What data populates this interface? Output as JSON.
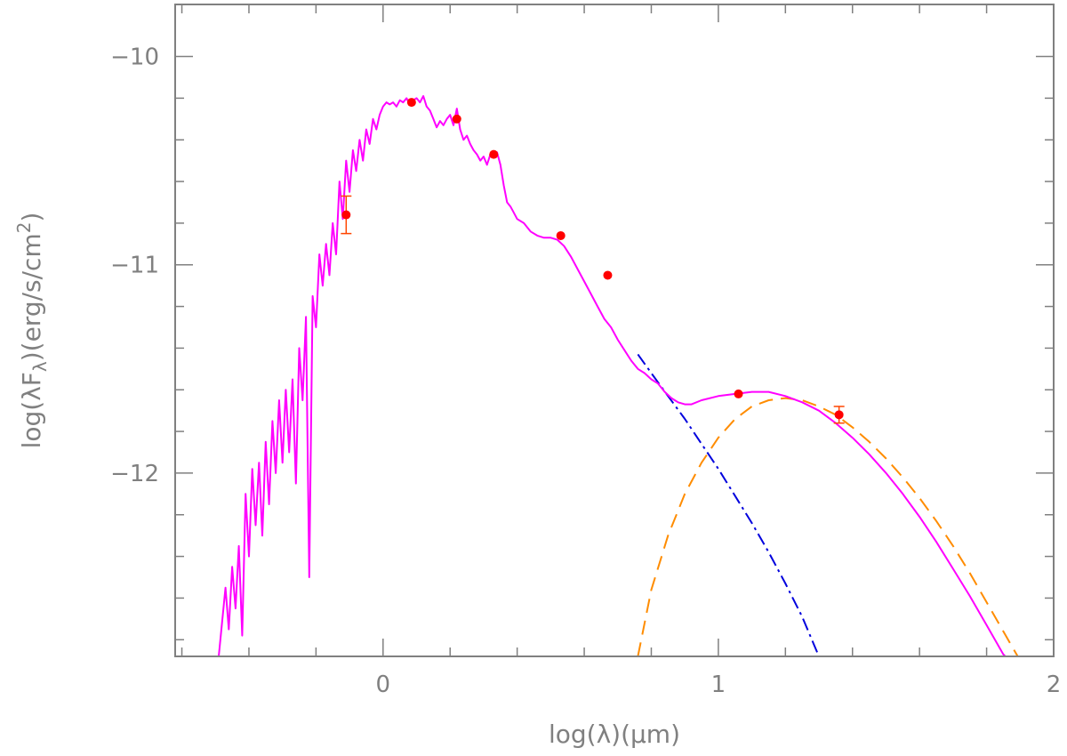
{
  "chart_data": {
    "type": "line",
    "xlabel": "log(λ)(μm)",
    "ylabel": "log(λF_λ)(erg/s/cm²)",
    "xlim": [
      -0.62,
      2.0
    ],
    "ylim": [
      -12.88,
      -9.75
    ],
    "x_ticks": [
      0,
      1,
      2
    ],
    "x_tick_labels": [
      "0",
      "1",
      "2"
    ],
    "y_ticks": [
      -10,
      -11,
      -12
    ],
    "y_tick_labels": [
      "−10",
      "−11",
      "−12"
    ],
    "grid": false,
    "legend": "none",
    "colors": {
      "total_model": "#ff00ff",
      "photosphere": "#0000dd",
      "dust": "#ff8c00",
      "observed": "#ff0000",
      "error_bar": "#ff4500",
      "axes": "#808080"
    },
    "series": [
      {
        "role": "total model (stellar spectrum + dust excess)",
        "style": "solid",
        "color": "#ff00ff",
        "x": [
          -0.49,
          -0.47,
          -0.46,
          -0.45,
          -0.44,
          -0.43,
          -0.42,
          -0.41,
          -0.4,
          -0.39,
          -0.38,
          -0.37,
          -0.36,
          -0.35,
          -0.34,
          -0.33,
          -0.32,
          -0.31,
          -0.3,
          -0.29,
          -0.28,
          -0.27,
          -0.26,
          -0.25,
          -0.24,
          -0.23,
          -0.22,
          -0.21,
          -0.2,
          -0.19,
          -0.18,
          -0.17,
          -0.16,
          -0.15,
          -0.14,
          -0.13,
          -0.12,
          -0.11,
          -0.1,
          -0.09,
          -0.08,
          -0.07,
          -0.06,
          -0.05,
          -0.04,
          -0.03,
          -0.02,
          -0.01,
          0.0,
          0.01,
          0.02,
          0.03,
          0.04,
          0.05,
          0.06,
          0.07,
          0.08,
          0.09,
          0.1,
          0.11,
          0.12,
          0.13,
          0.14,
          0.15,
          0.16,
          0.17,
          0.18,
          0.19,
          0.2,
          0.21,
          0.22,
          0.23,
          0.24,
          0.25,
          0.26,
          0.27,
          0.28,
          0.29,
          0.3,
          0.31,
          0.32,
          0.33,
          0.34,
          0.35,
          0.36,
          0.37,
          0.38,
          0.39,
          0.4,
          0.42,
          0.44,
          0.46,
          0.48,
          0.5,
          0.52,
          0.54,
          0.56,
          0.58,
          0.6,
          0.62,
          0.64,
          0.66,
          0.68,
          0.7,
          0.72,
          0.74,
          0.76,
          0.78,
          0.8,
          0.81,
          0.82,
          0.84,
          0.86,
          0.88,
          0.9,
          0.92,
          0.95,
          1.0,
          1.05,
          1.1,
          1.15,
          1.2,
          1.25,
          1.3,
          1.35,
          1.4,
          1.45,
          1.5,
          1.55,
          1.6,
          1.65,
          1.7,
          1.75,
          1.8,
          1.85,
          1.9
        ],
        "y": [
          -12.88,
          -12.55,
          -12.75,
          -12.45,
          -12.65,
          -12.35,
          -12.78,
          -12.1,
          -12.4,
          -11.98,
          -12.25,
          -11.95,
          -12.3,
          -11.85,
          -12.15,
          -11.75,
          -12.0,
          -11.65,
          -11.95,
          -11.6,
          -11.9,
          -11.55,
          -12.05,
          -11.4,
          -11.65,
          -11.25,
          -12.5,
          -11.15,
          -11.3,
          -10.95,
          -11.1,
          -10.9,
          -11.05,
          -10.8,
          -10.95,
          -10.6,
          -10.78,
          -10.5,
          -10.65,
          -10.45,
          -10.55,
          -10.4,
          -10.5,
          -10.35,
          -10.42,
          -10.3,
          -10.35,
          -10.28,
          -10.24,
          -10.22,
          -10.23,
          -10.22,
          -10.24,
          -10.21,
          -10.22,
          -10.2,
          -10.23,
          -10.21,
          -10.2,
          -10.22,
          -10.19,
          -10.24,
          -10.26,
          -10.3,
          -10.34,
          -10.31,
          -10.33,
          -10.3,
          -10.28,
          -10.33,
          -10.25,
          -10.35,
          -10.4,
          -10.38,
          -10.42,
          -10.45,
          -10.47,
          -10.5,
          -10.48,
          -10.52,
          -10.47,
          -10.48,
          -10.46,
          -10.52,
          -10.62,
          -10.7,
          -10.72,
          -10.75,
          -10.78,
          -10.8,
          -10.84,
          -10.86,
          -10.87,
          -10.87,
          -10.88,
          -10.91,
          -10.96,
          -11.02,
          -11.08,
          -11.14,
          -11.2,
          -11.26,
          -11.3,
          -11.36,
          -11.41,
          -11.46,
          -11.5,
          -11.52,
          -11.55,
          -11.56,
          -11.57,
          -11.61,
          -11.64,
          -11.66,
          -11.67,
          -11.67,
          -11.65,
          -11.63,
          -11.62,
          -11.61,
          -11.61,
          -11.63,
          -11.66,
          -11.7,
          -11.76,
          -11.83,
          -11.91,
          -12.0,
          -12.1,
          -12.21,
          -12.33,
          -12.46,
          -12.59,
          -12.73,
          -12.87,
          -12.95
        ]
      },
      {
        "role": "stellar photosphere",
        "style": "dash-dot",
        "color": "#0000dd",
        "x": [
          0.76,
          0.8,
          0.85,
          0.9,
          0.95,
          1.0,
          1.05,
          1.1,
          1.15,
          1.2,
          1.25,
          1.3
        ],
        "y": [
          -11.43,
          -11.52,
          -11.63,
          -11.74,
          -11.86,
          -11.98,
          -12.11,
          -12.24,
          -12.38,
          -12.53,
          -12.69,
          -12.88
        ]
      },
      {
        "role": "dust excess",
        "style": "dashed",
        "color": "#ff8c00",
        "x": [
          0.76,
          0.8,
          0.85,
          0.9,
          0.95,
          1.0,
          1.05,
          1.1,
          1.15,
          1.2,
          1.25,
          1.3,
          1.35,
          1.4,
          1.45,
          1.5,
          1.55,
          1.6,
          1.65,
          1.7,
          1.75,
          1.8,
          1.85,
          1.9
        ],
        "y": [
          -12.88,
          -12.56,
          -12.3,
          -12.1,
          -11.95,
          -11.83,
          -11.74,
          -11.68,
          -11.65,
          -11.64,
          -11.65,
          -11.68,
          -11.72,
          -11.78,
          -11.85,
          -11.93,
          -12.02,
          -12.12,
          -12.23,
          -12.35,
          -12.48,
          -12.62,
          -12.76,
          -12.9
        ]
      }
    ],
    "points": {
      "x": [
        -0.11,
        0.085,
        0.22,
        0.33,
        0.53,
        0.67,
        1.06,
        1.36
      ],
      "y": [
        -10.76,
        -10.22,
        -10.3,
        -10.47,
        -10.86,
        -11.05,
        -11.62,
        -11.72
      ],
      "yerr": [
        0.09,
        0.0,
        0.0,
        0.0,
        0.0,
        0.0,
        0.0,
        0.04
      ]
    }
  }
}
